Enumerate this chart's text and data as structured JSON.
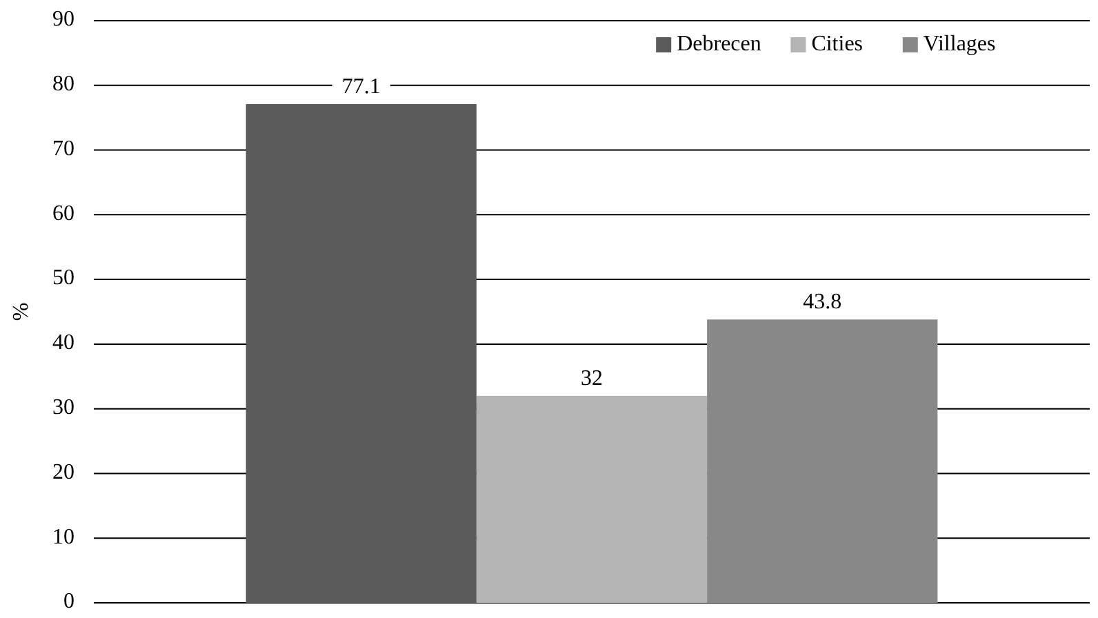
{
  "chart_data": {
    "type": "bar",
    "ylabel": "%",
    "categories": [
      null
    ],
    "series": [
      {
        "name": "Debrecen",
        "color": "#5a5a5a",
        "values": [
          77.1
        ]
      },
      {
        "name": "Cities",
        "color": "#b4b4b4",
        "values": [
          32
        ]
      },
      {
        "name": "Villages",
        "color": "#888888",
        "values": [
          43.8
        ]
      }
    ],
    "ylim": [
      0,
      90
    ],
    "yticks": [
      0,
      10,
      20,
      30,
      40,
      50,
      60,
      70,
      80,
      90
    ],
    "grid": "y",
    "legend": "top right",
    "data_labels": true
  }
}
